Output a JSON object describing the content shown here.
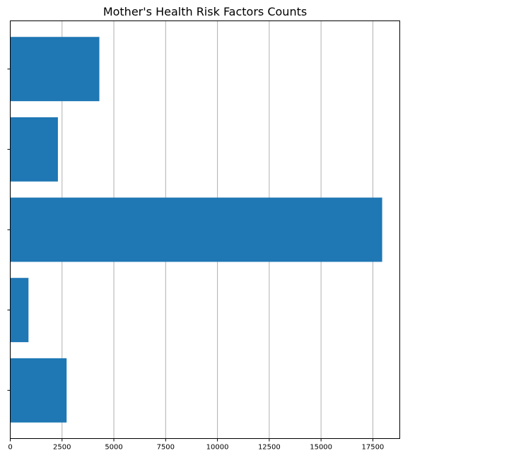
{
  "chart_data": {
    "type": "bar",
    "orientation": "horizontal",
    "title": "Mother's Health Risk Factors Counts",
    "xlabel": "",
    "ylabel": "",
    "categories": [
      "",
      "",
      "",
      "",
      ""
    ],
    "values": [
      4300,
      2300,
      17950,
      880,
      2720
    ],
    "xlim": [
      0,
      18800
    ],
    "xticks": [
      0,
      2500,
      5000,
      7500,
      10000,
      12500,
      15000,
      17500
    ],
    "xtick_labels": [
      "0",
      "2500",
      "5000",
      "7500",
      "10000",
      "12500",
      "15000",
      "17500"
    ],
    "grid": "x",
    "legend": "none",
    "bar_color": "#1f77b4",
    "grid_color": "#b0b0b0"
  }
}
